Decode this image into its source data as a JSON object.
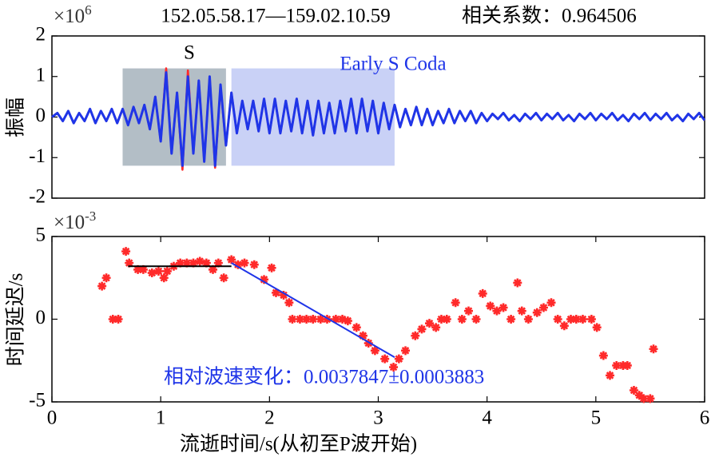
{
  "chart_data": [
    {
      "type": "line",
      "title": "152.05.58.17—159.02.10.59",
      "subtitle": "相关系数：0.964506",
      "y_multiplier": {
        "base": "×10",
        "exponent": "6"
      },
      "y_label": "振幅",
      "xlim": [
        0,
        6
      ],
      "ylim": [
        -2,
        2
      ],
      "yticks": [
        -2,
        -1,
        0,
        1,
        2
      ],
      "spans": [
        {
          "label": "S",
          "label_color": "#000000",
          "color": "#b3bec6",
          "xrange": [
            0.65,
            1.6
          ],
          "yrange": [
            -1.2,
            1.2
          ]
        },
        {
          "label": "Early S Coda",
          "label_color": "#1f35e8",
          "color": "#c9d1f6",
          "xrange": [
            1.65,
            3.15
          ],
          "yrange": [
            -1.2,
            1.2
          ]
        }
      ],
      "x": [
        0,
        0.05,
        0.1,
        0.15,
        0.2,
        0.25,
        0.3,
        0.35,
        0.4,
        0.45,
        0.5,
        0.55,
        0.6,
        0.65,
        0.7,
        0.75,
        0.8,
        0.85,
        0.9,
        0.95,
        1,
        1.05,
        1.1,
        1.15,
        1.2,
        1.25,
        1.3,
        1.35,
        1.4,
        1.45,
        1.5,
        1.55,
        1.6,
        1.65,
        1.7,
        1.75,
        1.8,
        1.85,
        1.9,
        1.95,
        2,
        2.05,
        2.1,
        2.15,
        2.2,
        2.25,
        2.3,
        2.35,
        2.4,
        2.45,
        2.5,
        2.55,
        2.6,
        2.65,
        2.7,
        2.75,
        2.8,
        2.85,
        2.9,
        2.95,
        3,
        3.05,
        3.1,
        3.15,
        3.2,
        3.25,
        3.3,
        3.35,
        3.4,
        3.45,
        3.5,
        3.55,
        3.6,
        3.65,
        3.7,
        3.75,
        3.8,
        3.85,
        3.9,
        3.95,
        4,
        4.05,
        4.1,
        4.15,
        4.2,
        4.25,
        4.3,
        4.35,
        4.4,
        4.45,
        4.5,
        4.55,
        4.6,
        4.65,
        4.7,
        4.75,
        4.8,
        4.85,
        4.9,
        4.95,
        5,
        5.05,
        5.1,
        5.15,
        5.2,
        5.25,
        5.3,
        5.35,
        5.4,
        5.45,
        5.5,
        5.55,
        5.6,
        5.65,
        5.7,
        5.75,
        5.8,
        5.85,
        5.9,
        5.95,
        6
      ],
      "series": [
        {
          "color": "#ff2a2a",
          "values": [
            0,
            0.1,
            -0.1,
            0.15,
            -0.15,
            0.1,
            -0.1,
            0.2,
            -0.15,
            0.15,
            -0.1,
            0.2,
            -0.15,
            0.2,
            -0.2,
            0.25,
            -0.15,
            0.3,
            -0.3,
            0.5,
            -0.6,
            1.2,
            -0.9,
            0.6,
            -1.3,
            1.15,
            -0.9,
            0.9,
            -1.1,
            1.0,
            -1.25,
            0.75,
            -0.7,
            0.6,
            -0.4,
            0.4,
            -0.3,
            0.4,
            -0.35,
            0.45,
            -0.4,
            0.45,
            -0.4,
            0.4,
            -0.35,
            0.45,
            -0.4,
            0.4,
            -0.45,
            0.4,
            -0.4,
            0.35,
            -0.4,
            0.4,
            -0.35,
            0.45,
            -0.4,
            0.45,
            -0.35,
            0.4,
            -0.4,
            0.35,
            -0.3,
            0.3,
            -0.25,
            0.2,
            -0.2,
            0.25,
            -0.2,
            0.2,
            -0.2,
            0.15,
            -0.15,
            0.2,
            -0.15,
            0.15,
            -0.1,
            0.15,
            -0.15,
            0.1,
            -0.1,
            0.08,
            -0.05,
            0.1,
            -0.08,
            0.05,
            -0.1,
            0.08,
            -0.05,
            0.1,
            -0.08,
            0.08,
            -0.05,
            0.1,
            -0.08,
            0.05,
            -0.1,
            0.08,
            -0.05,
            0.1,
            -0.08,
            0.08,
            -0.05,
            0.1,
            -0.08,
            0.05,
            -0.1,
            0.08,
            -0.05,
            0.1,
            -0.08,
            0.08,
            -0.05,
            0.1,
            -0.08,
            0.05,
            -0.1,
            0.08,
            -0.05,
            0.1,
            -0.08
          ]
        },
        {
          "color": "#1f35e8",
          "values": [
            0,
            0.1,
            -0.1,
            0.15,
            -0.15,
            0.1,
            -0.1,
            0.2,
            -0.15,
            0.15,
            -0.1,
            0.2,
            -0.15,
            0.2,
            -0.2,
            0.25,
            -0.15,
            0.3,
            -0.3,
            0.5,
            -0.6,
            1.1,
            -0.9,
            0.6,
            -1.2,
            1.0,
            -0.9,
            0.9,
            -1.1,
            1.0,
            -1.2,
            0.8,
            -0.7,
            0.6,
            -0.4,
            0.4,
            -0.3,
            0.4,
            -0.35,
            0.45,
            -0.4,
            0.45,
            -0.4,
            0.4,
            -0.35,
            0.45,
            -0.4,
            0.4,
            -0.45,
            0.4,
            -0.4,
            0.35,
            -0.4,
            0.4,
            -0.35,
            0.45,
            -0.4,
            0.45,
            -0.35,
            0.4,
            -0.4,
            0.35,
            -0.3,
            0.3,
            -0.25,
            0.2,
            -0.2,
            0.25,
            -0.2,
            0.2,
            -0.2,
            0.15,
            -0.15,
            0.2,
            -0.15,
            0.15,
            -0.1,
            0.15,
            -0.15,
            0.1,
            -0.1,
            0.08,
            -0.05,
            0.1,
            -0.08,
            0.05,
            -0.1,
            0.08,
            -0.05,
            0.1,
            -0.08,
            0.08,
            -0.05,
            0.1,
            -0.08,
            0.05,
            -0.1,
            0.08,
            -0.05,
            0.1,
            -0.08,
            0.08,
            -0.05,
            0.1,
            -0.08,
            0.05,
            -0.1,
            0.08,
            -0.05,
            0.1,
            -0.08,
            0.08,
            -0.05,
            0.1,
            -0.08,
            0.05,
            -0.1,
            0.08,
            -0.05,
            0.1,
            -0.08
          ]
        }
      ]
    },
    {
      "type": "scatter",
      "y_multiplier": {
        "base": "×10",
        "exponent": "-3"
      },
      "y_label": "时间延迟/s",
      "x_label": "流逝时间/s(从初至P波开始)",
      "annotation": "相对波速变化：0.0037847±0.0003883",
      "annotation_color": "#1f35e8",
      "xlim": [
        0,
        6
      ],
      "ylim": [
        -5,
        5
      ],
      "xticks": [
        0,
        1,
        2,
        3,
        4,
        5,
        6
      ],
      "yticks": [
        -5,
        0,
        5
      ],
      "color": "#ff2a2a",
      "x": [
        0.46,
        0.5,
        0.56,
        0.61,
        0.68,
        0.71,
        0.79,
        0.84,
        0.92,
        0.98,
        1.03,
        1.06,
        1.12,
        1.18,
        1.24,
        1.3,
        1.36,
        1.42,
        1.48,
        1.53,
        1.58,
        1.65,
        1.71,
        1.77,
        1.86,
        1.95,
        2.02,
        2.06,
        2.13,
        2.18,
        2.21,
        2.28,
        2.34,
        2.4,
        2.47,
        2.53,
        2.61,
        2.67,
        2.72,
        2.8,
        2.86,
        2.91,
        2.97,
        3.06,
        3.14,
        3.19,
        3.25,
        3.34,
        3.4,
        3.47,
        3.53,
        3.58,
        3.63,
        3.71,
        3.77,
        3.83,
        3.9,
        3.96,
        4.03,
        4.09,
        4.15,
        4.22,
        4.28,
        4.32,
        4.38,
        4.46,
        4.52,
        4.59,
        4.65,
        4.71,
        4.77,
        4.82,
        4.88,
        4.96,
        5.01,
        5.07,
        5.13,
        5.19,
        5.25,
        5.29,
        5.35,
        5.4,
        5.44,
        5.5,
        5.53
      ],
      "values": [
        2.0,
        2.5,
        0,
        0,
        4.1,
        3.4,
        3.0,
        3.0,
        2.8,
        2.9,
        2.5,
        2.9,
        3.2,
        3.4,
        3.4,
        3.4,
        3.5,
        3.4,
        3.0,
        3.4,
        2.5,
        3.6,
        3.3,
        3.4,
        3.3,
        2.4,
        3.1,
        1.6,
        1.45,
        1.0,
        0,
        0,
        0,
        0,
        0,
        0,
        0,
        0,
        -0.1,
        -0.5,
        -1.0,
        -1.45,
        -1.9,
        -2.4,
        -2.9,
        -2.4,
        -1.9,
        -1.0,
        -0.6,
        -0.25,
        -0.5,
        0,
        0,
        1.0,
        0,
        0.5,
        0,
        1.55,
        0.8,
        0.5,
        0.7,
        0,
        2.2,
        0.5,
        0,
        0.4,
        0.7,
        1.0,
        0,
        -0.4,
        0,
        0,
        0,
        0,
        -0.5,
        -2.2,
        -3.4,
        -2.8,
        -2.8,
        -2.8,
        -4.3,
        -4.6,
        -4.8,
        -4.8,
        -1.8
      ],
      "lines": [
        {
          "color": "#000000",
          "x": [
            0.7,
            1.65
          ],
          "y": [
            3.2,
            3.2
          ]
        },
        {
          "color": "#1f35e8",
          "x": [
            1.65,
            3.15
          ],
          "y": [
            3.4,
            -2.3
          ]
        }
      ]
    }
  ]
}
